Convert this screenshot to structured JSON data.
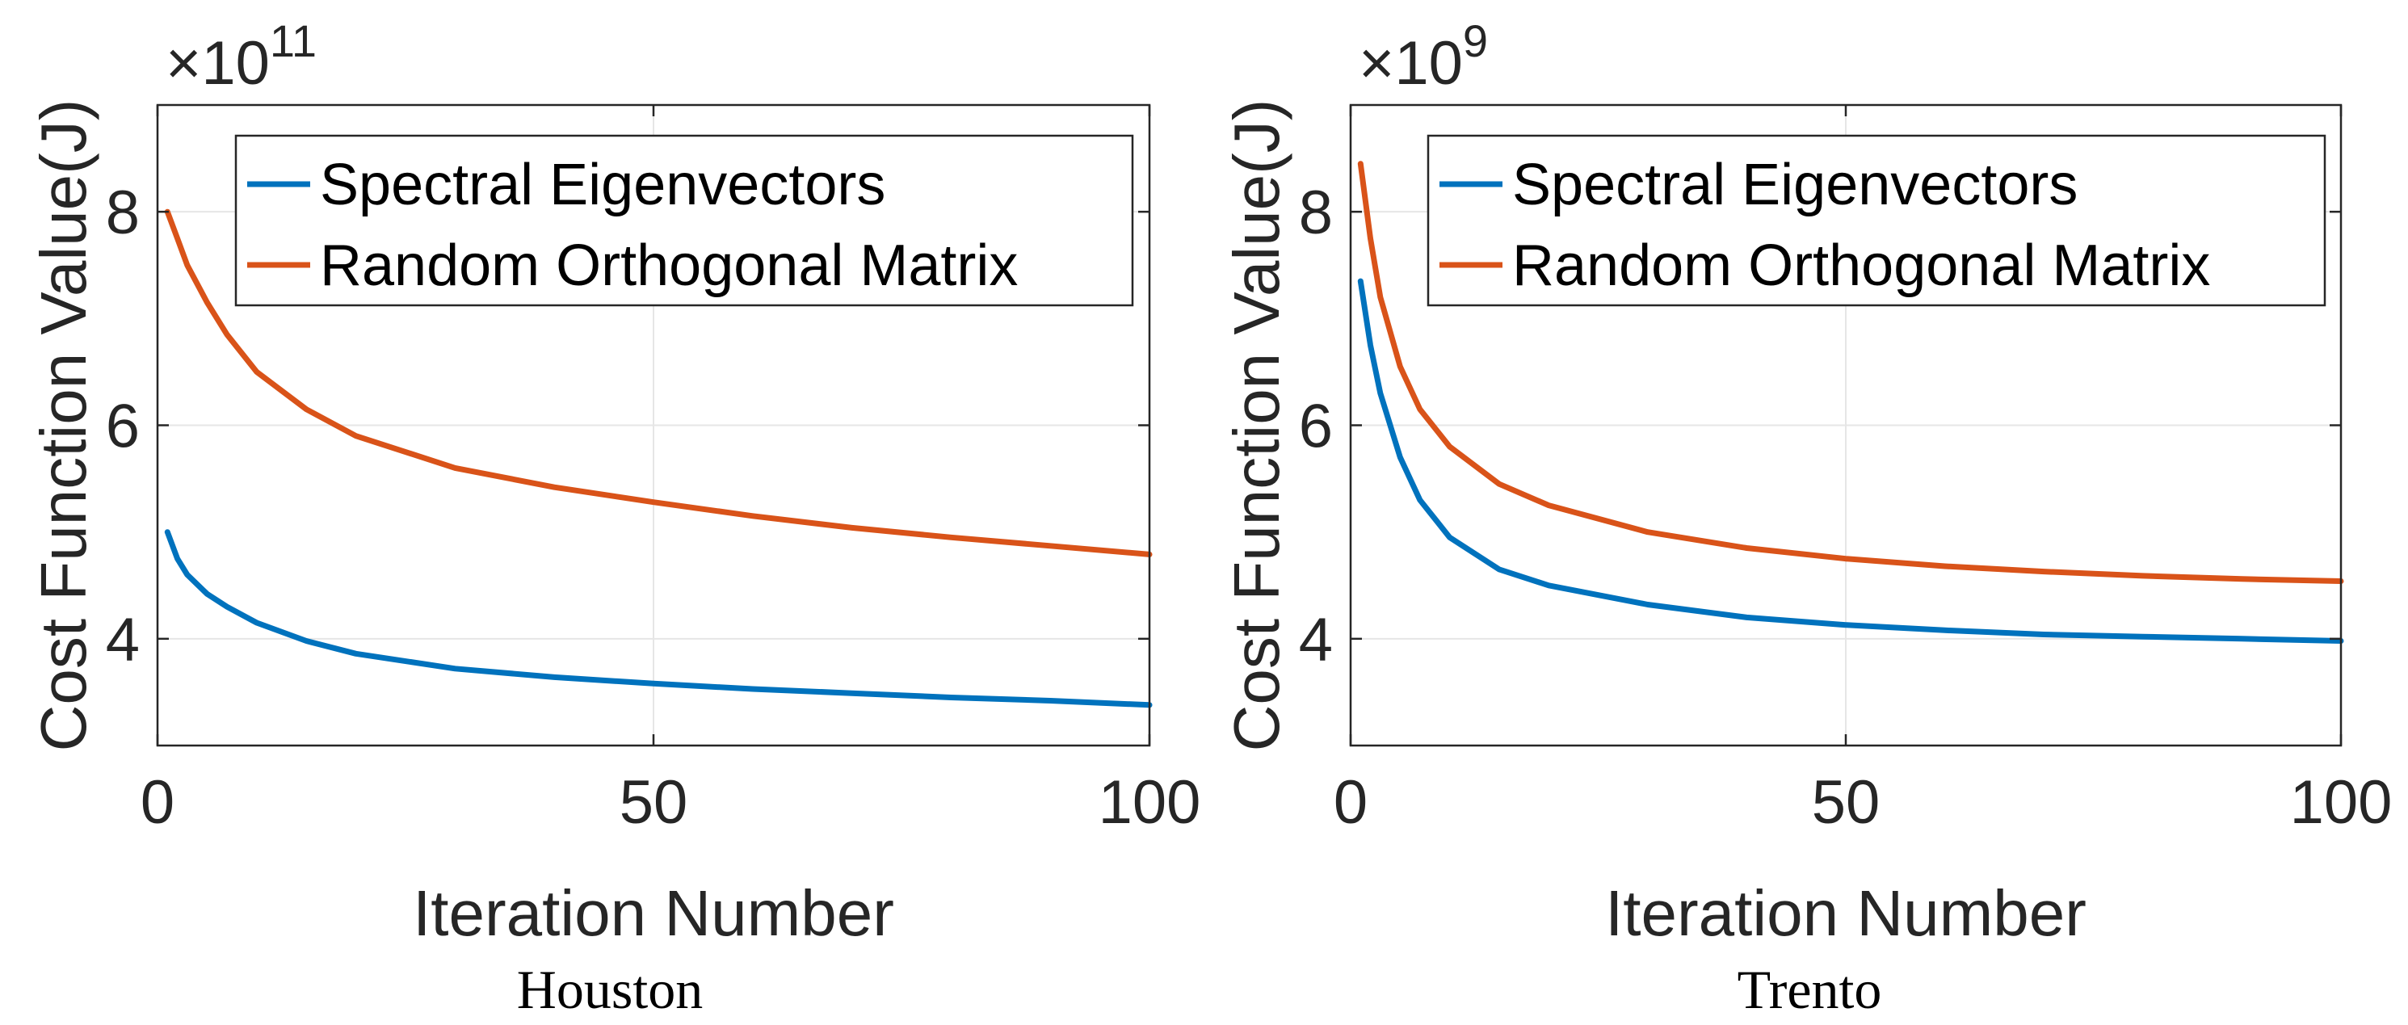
{
  "colors": {
    "spectral": "#0072BD",
    "random": "#D95319",
    "axis": "#262626",
    "grid": "#E6E6E6"
  },
  "chart_data": [
    {
      "type": "line",
      "caption": "Houston",
      "xlabel": "Iteration Number",
      "ylabel": "Cost Function Value(J)",
      "exponent_base": "10",
      "exponent_power": "11",
      "xlim": [
        0,
        100
      ],
      "ylim": [
        3,
        9
      ],
      "xticks": [
        0,
        50,
        100
      ],
      "yticks": [
        4,
        6,
        8
      ],
      "grid": true,
      "legend_position": "top-right",
      "series": [
        {
          "name": "Spectral Eigenvectors",
          "color_key": "spectral",
          "x": [
            1,
            2,
            3,
            5,
            7,
            10,
            15,
            20,
            30,
            40,
            50,
            60,
            70,
            80,
            90,
            100
          ],
          "y": [
            5.0,
            4.75,
            4.6,
            4.42,
            4.3,
            4.15,
            3.98,
            3.86,
            3.72,
            3.64,
            3.58,
            3.53,
            3.49,
            3.45,
            3.42,
            3.38
          ]
        },
        {
          "name": "Random Orthogonal Matrix",
          "color_key": "random",
          "x": [
            1,
            2,
            3,
            5,
            7,
            10,
            15,
            20,
            30,
            40,
            50,
            60,
            70,
            80,
            90,
            100
          ],
          "y": [
            8.0,
            7.75,
            7.5,
            7.15,
            6.85,
            6.5,
            6.15,
            5.9,
            5.6,
            5.42,
            5.28,
            5.15,
            5.04,
            4.95,
            4.87,
            4.79
          ]
        }
      ]
    },
    {
      "type": "line",
      "caption": "Trento",
      "xlabel": "Iteration Number",
      "ylabel": "Cost Function Value(J)",
      "exponent_base": "10",
      "exponent_power": "9",
      "xlim": [
        0,
        100
      ],
      "ylim": [
        3,
        9
      ],
      "xticks": [
        0,
        50,
        100
      ],
      "yticks": [
        4,
        6,
        8
      ],
      "grid": true,
      "legend_position": "top-right",
      "series": [
        {
          "name": "Spectral Eigenvectors",
          "color_key": "spectral",
          "x": [
            1,
            2,
            3,
            5,
            7,
            10,
            15,
            20,
            30,
            40,
            50,
            60,
            70,
            80,
            90,
            100
          ],
          "y": [
            7.35,
            6.75,
            6.3,
            5.7,
            5.3,
            4.95,
            4.65,
            4.5,
            4.32,
            4.2,
            4.13,
            4.08,
            4.04,
            4.02,
            4.0,
            3.98
          ]
        },
        {
          "name": "Random Orthogonal Matrix",
          "color_key": "random",
          "x": [
            1,
            2,
            3,
            5,
            7,
            10,
            15,
            20,
            30,
            40,
            50,
            60,
            70,
            80,
            90,
            100
          ],
          "y": [
            8.45,
            7.75,
            7.2,
            6.55,
            6.15,
            5.8,
            5.45,
            5.25,
            5.0,
            4.85,
            4.75,
            4.68,
            4.63,
            4.59,
            4.56,
            4.54
          ]
        }
      ]
    }
  ]
}
